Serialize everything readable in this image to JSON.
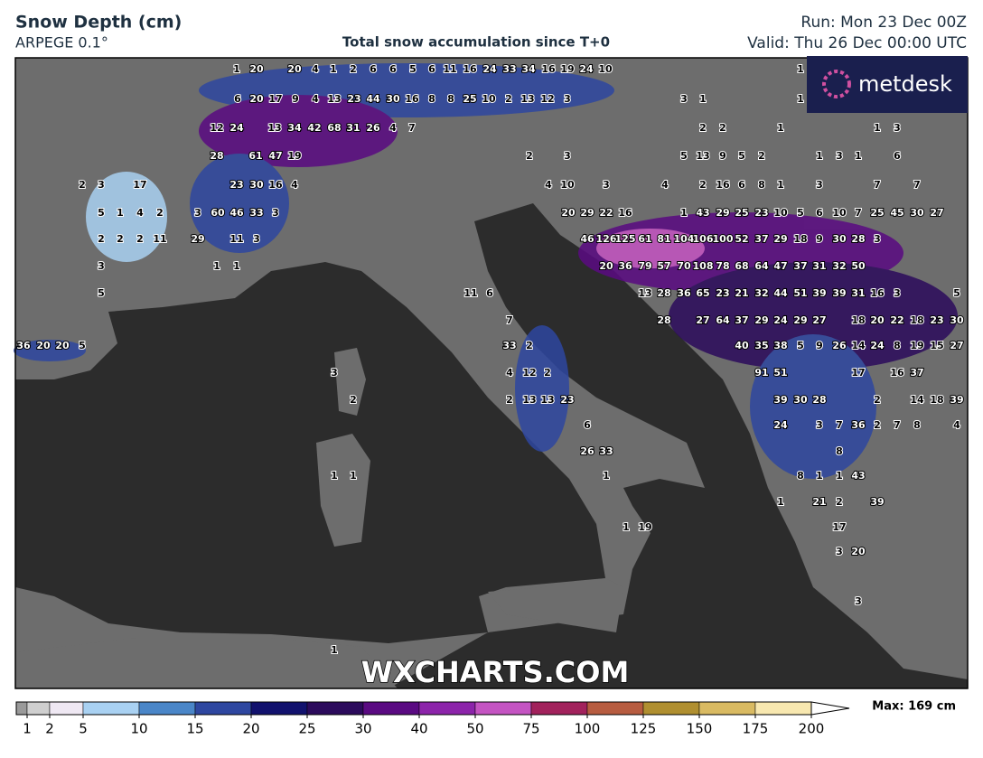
{
  "header": {
    "title": "Snow Depth (cm)",
    "model": "ARPEGE 0.1°",
    "subtitle": "Total snow accumulation since T+0",
    "run": "Run: Mon 23 Dec 00Z",
    "valid": "Valid: Thu 26 Dec 00:00 UTC"
  },
  "logo": "metdesk",
  "watermark": "WXCHARTS.COM",
  "legend": {
    "ticks": [
      1,
      2,
      5,
      10,
      15,
      20,
      25,
      30,
      40,
      50,
      75,
      100,
      125,
      150,
      175,
      200
    ],
    "colors": [
      "#9a9a9a",
      "#cfcfcf",
      "#efe8f3",
      "#a9d1f2",
      "#4a86c8",
      "#2e47a0",
      "#12126e",
      "#2c0b5c",
      "#5a0a82",
      "#8c24aa",
      "#c454c2",
      "#a2225c",
      "#b75c40",
      "#b08f30",
      "#d9ba62",
      "#f8e8b0"
    ],
    "max": "Max: 169 cm"
  },
  "map_labels": [
    [
      1,
      20,
      20,
      4,
      1,
      2,
      6,
      6,
      5,
      6,
      11,
      16,
      24,
      33,
      34,
      16,
      19,
      24,
      10,
      1
    ],
    [
      6,
      20,
      17,
      9,
      4,
      13,
      23,
      44,
      30,
      16,
      8,
      8,
      25,
      10,
      2,
      13,
      12,
      3,
      3,
      1,
      1
    ],
    [
      12,
      24,
      13,
      34,
      42,
      68,
      31,
      26,
      4,
      7,
      2,
      2,
      1,
      1,
      3
    ],
    [
      28,
      61,
      47,
      19,
      2,
      3,
      5,
      13,
      9,
      5,
      2,
      1,
      3,
      1,
      6
    ],
    [
      2,
      3,
      17,
      23,
      30,
      16,
      4,
      4,
      10,
      3,
      4,
      2,
      16,
      6,
      8,
      1,
      3,
      7,
      7
    ],
    [
      5,
      1,
      4,
      2,
      3,
      60,
      46,
      33,
      3,
      20,
      29,
      22,
      16,
      1,
      43,
      29,
      25,
      23,
      10,
      5,
      6,
      10,
      7,
      25,
      45,
      30,
      27
    ],
    [
      2,
      2,
      2,
      11,
      29,
      11,
      3,
      46,
      126,
      125,
      61,
      81,
      104,
      106,
      100,
      52,
      37,
      29,
      18,
      9,
      30,
      28,
      3
    ],
    [
      3,
      1,
      1,
      20,
      36,
      79,
      57,
      70,
      108,
      78,
      68,
      64,
      47,
      37,
      31,
      32,
      50
    ],
    [
      5,
      11,
      6,
      13,
      28,
      36,
      65,
      23,
      21,
      32,
      44,
      51,
      39,
      39,
      31,
      16,
      3,
      5
    ],
    [
      7,
      28,
      27,
      64,
      37,
      29,
      24,
      29,
      27,
      18,
      20,
      22,
      18,
      23,
      30
    ],
    [
      36,
      20,
      20,
      5,
      33,
      2,
      40,
      35,
      38,
      5,
      9,
      26,
      14,
      24,
      8,
      19,
      15,
      27
    ],
    [
      3,
      4,
      12,
      2,
      91,
      51,
      17,
      16,
      37
    ],
    [
      2,
      2,
      13,
      13,
      23,
      39,
      30,
      28,
      2,
      14,
      18,
      39
    ],
    [
      6,
      24,
      3,
      7,
      36,
      2,
      7,
      8,
      4
    ],
    [
      26,
      33,
      8
    ],
    [
      1,
      1,
      1,
      8,
      1,
      1,
      43
    ],
    [
      1,
      21,
      2,
      39
    ],
    [
      1,
      19,
      17
    ],
    [
      3,
      20
    ],
    [
      3
    ],
    [
      1
    ]
  ]
}
